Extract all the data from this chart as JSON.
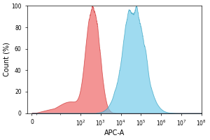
{
  "title": "",
  "xlabel": "APC-A",
  "ylabel": "Count (%)",
  "ylim": [
    0,
    100
  ],
  "yticks": [
    0,
    20,
    40,
    60,
    80,
    100
  ],
  "xtick_values": [
    0,
    100,
    1000,
    10000,
    100000,
    1000000,
    10000000,
    100000000
  ],
  "xtick_labels": [
    "0",
    "$10^2$",
    "$10^3$",
    "$10^4$",
    "$10^5$",
    "$10^6$",
    "$10^7$",
    "$10^8$"
  ],
  "red_color": "#F07070",
  "red_edge": "#CC3333",
  "blue_color": "#6CC8E8",
  "blue_edge": "#2299BB",
  "red_peak_log": 2.7,
  "red_sigma": 0.28,
  "blue_peak_log": 4.65,
  "blue_sigma": 0.55,
  "background_color": "#ffffff",
  "linthresh": 5
}
